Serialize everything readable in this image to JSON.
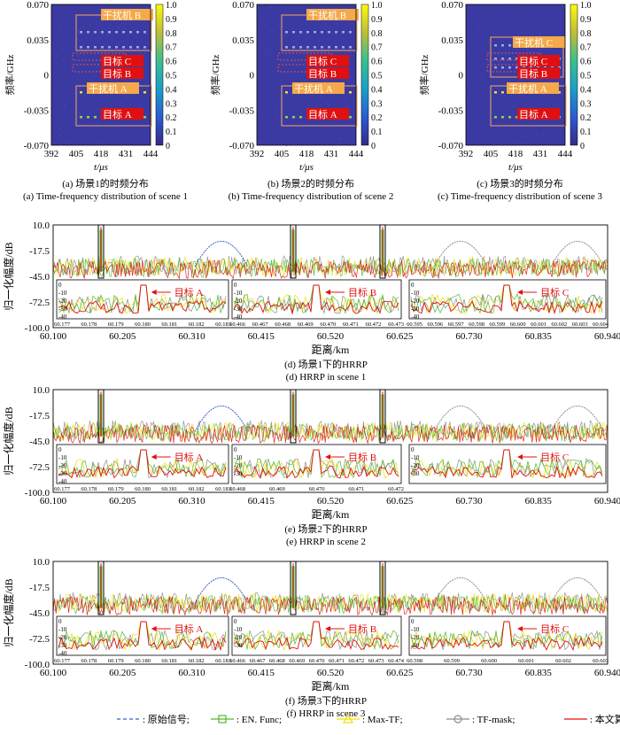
{
  "tf_panels": [
    {
      "caption_cn": "(a) 场景1的时频分布",
      "caption_en": "(a) Time-frequency distribution of scene 1",
      "xlabel": "t/μs",
      "ylabel": "频率/GHz",
      "xticks": [
        "392",
        "405",
        "418",
        "431",
        "444"
      ],
      "yticks": [
        "0.070",
        "0.035",
        "0",
        "-0.035",
        "-0.070"
      ],
      "colorbar_ticks": [
        "1.0",
        "0.9",
        "0.8",
        "0.7",
        "0.6",
        "0.5",
        "0.4",
        "0.3",
        "0.2",
        "0.1",
        "0"
      ],
      "labels": [
        "干扰机 B",
        "目标 C",
        "目标 B",
        "干扰机 A",
        "目标 A"
      ]
    },
    {
      "caption_cn": "(b) 场景2的时频分布",
      "caption_en": "(b) Time-frequency distribution of scene 2",
      "xlabel": "t/μs",
      "ylabel": "频率/GHz",
      "xticks": [
        "392",
        "405",
        "418",
        "431",
        "444"
      ],
      "yticks": [
        "0.070",
        "0.035",
        "0",
        "-0.035",
        "-0.070"
      ],
      "colorbar_ticks": [
        "1.0",
        "0.9",
        "0.8",
        "0.7",
        "0.6",
        "0.5",
        "0.4",
        "0.3",
        "0.2",
        "0.1",
        "0"
      ],
      "labels": [
        "干扰机 B",
        "目标 C",
        "目标 B",
        "干扰机 A",
        "目标 A"
      ]
    },
    {
      "caption_cn": "(c) 场景3的时频分布",
      "caption_en": "(c) Time-frequency distribution of scene 3",
      "xlabel": "t/μs",
      "ylabel": "频率/GHz",
      "xticks": [
        "392",
        "405",
        "418",
        "431",
        "444"
      ],
      "yticks": [
        "0.070",
        "0.035",
        "0",
        "-0.035",
        "-0.070"
      ],
      "colorbar_ticks": [
        "1.0",
        "0.9",
        "0.8",
        "0.7",
        "0.6",
        "0.5",
        "0.4",
        "0.3",
        "0.2",
        "0.1",
        "0"
      ],
      "labels": [
        "干扰机 C",
        "目标 C",
        "目标 B",
        "干扰机 A",
        "目标 A"
      ]
    }
  ],
  "hrrp_panels": [
    {
      "caption_cn": "(d) 场景1下的HRRP",
      "caption_en": "(d) HRRP in scene 1",
      "insets": [
        {
          "label": "目标 A",
          "xticks": [
            "60.177",
            "60.178",
            "60.179",
            "60.180",
            "60.181",
            "60.182",
            "60.183"
          ]
        },
        {
          "label": "目标 B",
          "xticks": [
            "60.466",
            "60.467",
            "60.468",
            "60.469",
            "60.470",
            "60.471",
            "60.472",
            "60.473"
          ]
        },
        {
          "label": "目标 C",
          "xticks": [
            "60.595",
            "60.596",
            "60.597",
            "60.598",
            "60.599",
            "60.600",
            "60.601",
            "60.602",
            "60.603",
            "60.604"
          ]
        }
      ]
    },
    {
      "caption_cn": "(e) 场景2下的HRRP",
      "caption_en": "(e) HRRP in scene 2",
      "insets": [
        {
          "label": "目标 A",
          "xticks": [
            "60.177",
            "60.178",
            "60.179",
            "60.180",
            "60.181",
            "60.182",
            "60.183"
          ]
        },
        {
          "label": "目标 B",
          "xticks": [
            "60.468",
            "60.469",
            "60.470",
            "60.471",
            "60.472"
          ]
        },
        {
          "label": "目标 C",
          "xticks": []
        }
      ]
    },
    {
      "caption_cn": "(f) 场景3下的HRRP",
      "caption_en": "(f) HRRP in scene 3",
      "insets": [
        {
          "label": "目标 A",
          "xticks": [
            "60.177",
            "60.178",
            "60.179",
            "60.180",
            "60.181",
            "60.182",
            "60.183"
          ]
        },
        {
          "label": "目标 B",
          "xticks": [
            "60.466",
            "60.467",
            "60.468",
            "60.469",
            "60.470",
            "60.471",
            "60.472",
            "60.473",
            "60.474"
          ]
        },
        {
          "label": "目标 C",
          "xticks": [
            "60.598",
            "60.599",
            "60.600",
            "60.601",
            "60.602",
            "60.603"
          ]
        }
      ]
    }
  ],
  "hrrp_axes": {
    "xlabel": "距离/km",
    "ylabel": "归一化幅度/dB",
    "xticks": [
      "60.100",
      "60.205",
      "60.310",
      "60.415",
      "60.520",
      "60.625",
      "60.730",
      "60.835",
      "60.940"
    ],
    "yticks": [
      "10.0",
      "-17.5",
      "-45.0",
      "-72.5",
      "-100.0"
    ],
    "inset_yticks": [
      "0",
      "-10",
      "-20",
      "-30",
      "-40"
    ]
  },
  "legend": [
    {
      "label": ": 原始信号;",
      "color": "#3a5fcd",
      "style": "dashed"
    },
    {
      "label": ": EN. Func;",
      "color": "#55b831",
      "style": "square"
    },
    {
      "label": ": Max-TF;",
      "color": "#f0e000",
      "style": "triangle"
    },
    {
      "label": ": TF-mask;",
      "color": "#8c8c8c",
      "style": "circle"
    },
    {
      "label": ": 本文算法。",
      "color": "#e01010",
      "style": "solid"
    }
  ],
  "chart_data": [
    {
      "type": "heatmap",
      "title": "(a) 场景1的时频分布",
      "xlabel": "t/μs",
      "ylabel": "频率/GHz",
      "xlim": [
        392,
        444
      ],
      "ylim": [
        -0.07,
        0.07
      ],
      "colorbar": [
        0,
        1.0
      ],
      "regions": [
        {
          "name": "干扰机 B",
          "t": [
            405,
            431
          ],
          "f": [
            0.028,
            0.065
          ]
        },
        {
          "name": "目标 C",
          "t": [
            405,
            431
          ],
          "f": [
            0.01,
            0.018
          ]
        },
        {
          "name": "目标 B",
          "t": [
            405,
            431
          ],
          "f": [
            0.0,
            0.008
          ]
        },
        {
          "name": "干扰机 A",
          "t": [
            405,
            431
          ],
          "f": [
            -0.038,
            -0.018
          ]
        },
        {
          "name": "目标 A",
          "t": [
            405,
            431
          ],
          "f": [
            -0.055,
            -0.04
          ]
        }
      ]
    },
    {
      "type": "heatmap",
      "title": "(b) 场景2的时频分布",
      "xlabel": "t/μs",
      "ylabel": "频率/GHz",
      "xlim": [
        392,
        444
      ],
      "ylim": [
        -0.07,
        0.07
      ],
      "colorbar": [
        0,
        1.0
      ]
    },
    {
      "type": "heatmap",
      "title": "(c) 场景3的时频分布",
      "xlabel": "t/μs",
      "ylabel": "频率/GHz",
      "xlim": [
        392,
        444
      ],
      "ylim": [
        -0.07,
        0.07
      ],
      "colorbar": [
        0,
        1.0
      ]
    },
    {
      "type": "line",
      "title": "(d) 场景1下的HRRP",
      "xlabel": "距离/km",
      "ylabel": "归一化幅度/dB",
      "xlim": [
        60.1,
        60.94
      ],
      "ylim": [
        -100,
        10
      ],
      "peaks": [
        {
          "name": "目标 A",
          "x": 60.18
        },
        {
          "name": "目标 B",
          "x": 60.47
        },
        {
          "name": "目标 C",
          "x": 60.6
        }
      ]
    },
    {
      "type": "line",
      "title": "(e) 场景2下的HRRP",
      "xlabel": "距离/km",
      "ylabel": "归一化幅度/dB",
      "xlim": [
        60.1,
        60.94
      ],
      "ylim": [
        -100,
        10
      ]
    },
    {
      "type": "line",
      "title": "(f) 场景3下的HRRP",
      "xlabel": "距离/km",
      "ylabel": "归一化幅度/dB",
      "xlim": [
        60.1,
        60.94
      ],
      "ylim": [
        -100,
        10
      ]
    }
  ]
}
